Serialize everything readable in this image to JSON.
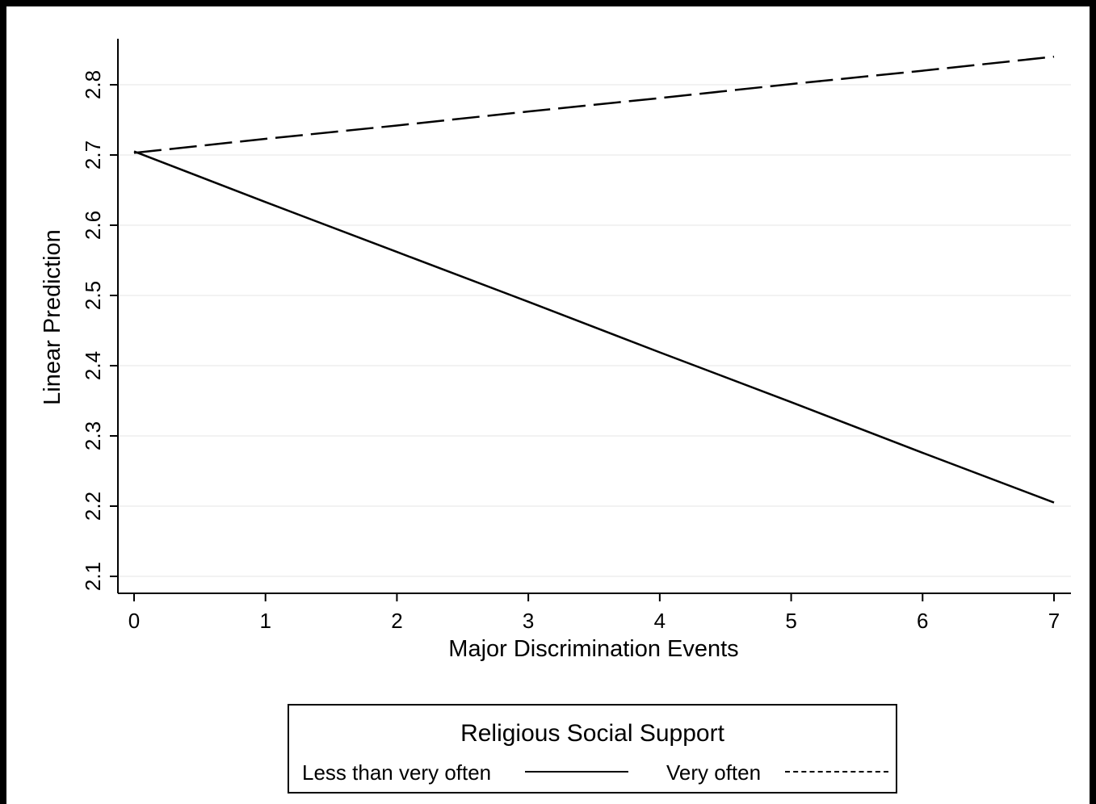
{
  "chart_data": {
    "type": "line",
    "title": "",
    "xlabel": "Major Discrimination Events",
    "ylabel": "Linear Prediction",
    "x": [
      0,
      1,
      2,
      3,
      4,
      5,
      6,
      7
    ],
    "xticks": [
      "0",
      "1",
      "2",
      "3",
      "4",
      "5",
      "6",
      "7"
    ],
    "yticks": [
      "2.1",
      "2.2",
      "2.3",
      "2.4",
      "2.5",
      "2.6",
      "2.7",
      "2.8"
    ],
    "xlim": [
      -0.1,
      7.1
    ],
    "ylim": [
      2.075,
      2.865
    ],
    "grid": true,
    "series": [
      {
        "name": "Less than very often",
        "line_style": "solid",
        "color": "#000000",
        "values": [
          2.705,
          2.633,
          2.562,
          2.491,
          2.419,
          2.348,
          2.276,
          2.205
        ]
      },
      {
        "name": "Very often",
        "line_style": "dashed",
        "color": "#000000",
        "values": [
          2.703,
          2.723,
          2.742,
          2.762,
          2.781,
          2.801,
          2.82,
          2.84
        ]
      }
    ],
    "legend": {
      "title": "Religious Social Support",
      "placement": "bottom",
      "entries": [
        "Less than very often",
        "Very often"
      ]
    }
  }
}
